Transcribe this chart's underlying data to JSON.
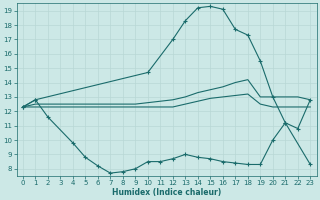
{
  "background_color": "#cce8e6",
  "grid_color": "#b8d8d5",
  "line_color": "#1a6b6b",
  "xlabel": "Humidex (Indice chaleur)",
  "ylim": [
    7.5,
    19.5
  ],
  "xlim": [
    -0.5,
    23.5
  ],
  "yticks": [
    8,
    9,
    10,
    11,
    12,
    13,
    14,
    15,
    16,
    17,
    18,
    19
  ],
  "xticks": [
    0,
    1,
    2,
    3,
    4,
    5,
    6,
    7,
    8,
    9,
    10,
    11,
    12,
    13,
    14,
    15,
    16,
    17,
    18,
    19,
    20,
    21,
    22,
    23
  ],
  "curve_top_x": [
    0,
    1,
    10,
    12,
    13,
    14,
    15,
    16,
    17,
    18,
    19,
    20,
    21,
    22,
    23
  ],
  "curve_top_y": [
    12.3,
    12.8,
    14.7,
    17.0,
    18.3,
    19.2,
    19.3,
    19.1,
    17.7,
    17.3,
    15.5,
    13.0,
    11.2,
    10.8,
    12.8
  ],
  "curve_mid1_x": [
    0,
    1,
    9,
    10,
    11,
    12,
    13,
    14,
    15,
    16,
    17,
    18,
    19,
    20,
    21,
    22,
    23
  ],
  "curve_mid1_y": [
    12.3,
    12.5,
    12.5,
    12.6,
    12.7,
    12.8,
    13.0,
    13.3,
    13.5,
    13.7,
    14.0,
    14.2,
    13.0,
    13.0,
    13.0,
    13.0,
    12.8
  ],
  "curve_mid2_x": [
    0,
    1,
    9,
    10,
    11,
    12,
    13,
    14,
    15,
    16,
    17,
    18,
    19,
    20,
    21,
    22,
    23
  ],
  "curve_mid2_y": [
    12.3,
    12.3,
    12.3,
    12.3,
    12.3,
    12.3,
    12.5,
    12.7,
    12.9,
    13.0,
    13.1,
    13.2,
    12.5,
    12.3,
    12.3,
    12.3,
    12.3
  ],
  "curve_low_x": [
    0,
    1,
    2,
    4,
    5,
    6,
    7,
    8,
    9,
    10,
    11,
    12,
    13,
    14,
    15,
    16,
    17,
    18,
    19,
    20,
    21,
    23
  ],
  "curve_low_y": [
    12.3,
    12.8,
    11.6,
    9.8,
    8.8,
    8.2,
    7.7,
    7.8,
    8.0,
    8.5,
    8.5,
    8.7,
    9.0,
    8.8,
    8.7,
    8.5,
    8.4,
    8.3,
    8.3,
    10.0,
    11.2,
    8.3
  ]
}
